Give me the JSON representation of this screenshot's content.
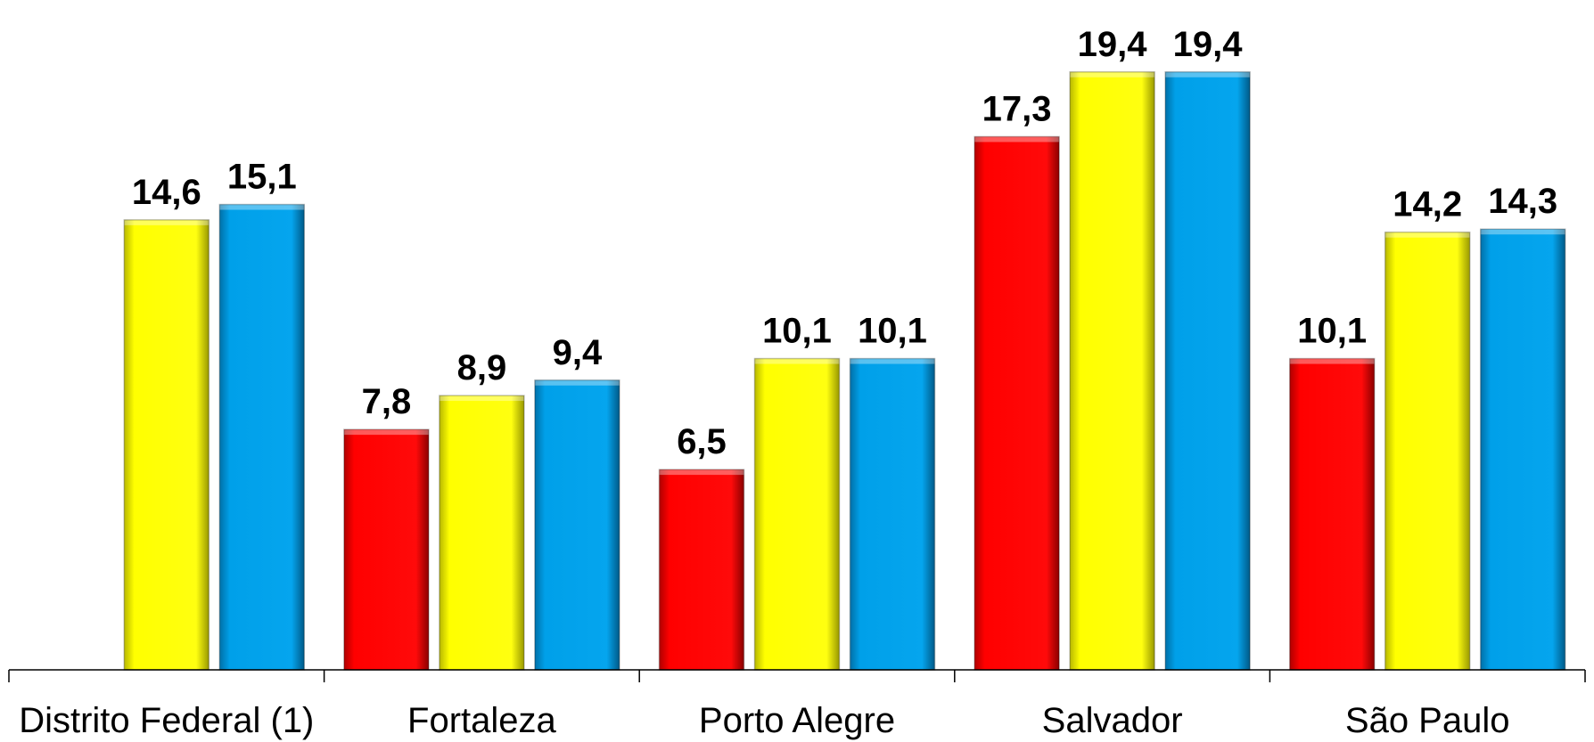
{
  "chart_data": {
    "type": "bar",
    "categories": [
      "Distrito Federal (1)",
      "Fortaleza",
      "Porto Alegre",
      "Salvador",
      "São Paulo"
    ],
    "series": [
      {
        "values": [
          null,
          7.8,
          6.5,
          17.3,
          10.1
        ],
        "labels": [
          "",
          "7,8",
          "6,5",
          "17,3",
          "10,1"
        ],
        "color": "#ff0000"
      },
      {
        "values": [
          14.6,
          8.9,
          10.1,
          19.4,
          14.2
        ],
        "labels": [
          "14,6",
          "8,9",
          "10,1",
          "19,4",
          "14,2"
        ],
        "color": "#ffff00"
      },
      {
        "values": [
          15.1,
          9.4,
          10.1,
          19.4,
          14.3
        ],
        "labels": [
          "15,1",
          "9,4",
          "10,1",
          "19,4",
          "14,3"
        ],
        "color": "#00a0e9"
      }
    ],
    "title": "",
    "xlabel": "",
    "ylabel": "",
    "ylim": [
      0,
      20
    ],
    "grid": false,
    "legend": "none"
  }
}
